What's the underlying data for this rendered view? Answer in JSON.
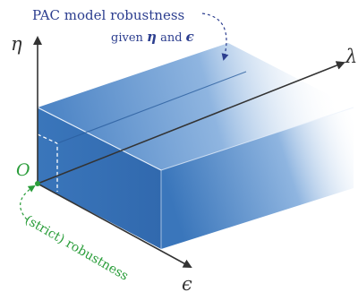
{
  "annotations": {
    "pac_title": "PAC model robustness",
    "pac_subtitle_pre": "given ",
    "pac_eta": "η",
    "pac_and": " and ",
    "pac_epsilon": "ϵ",
    "strict_robustness": "(strict) robustness"
  },
  "axes": {
    "eta": "η",
    "lambda": "λ",
    "epsilon": "ϵ",
    "origin": "O"
  },
  "colors": {
    "box_blue": "#3d78bd",
    "box_top": "#5a90cc",
    "box_side": "#2f67aa",
    "pac_label": "#2c3e8f",
    "strict_label": "#2a9d3a",
    "axis": "#333333"
  }
}
